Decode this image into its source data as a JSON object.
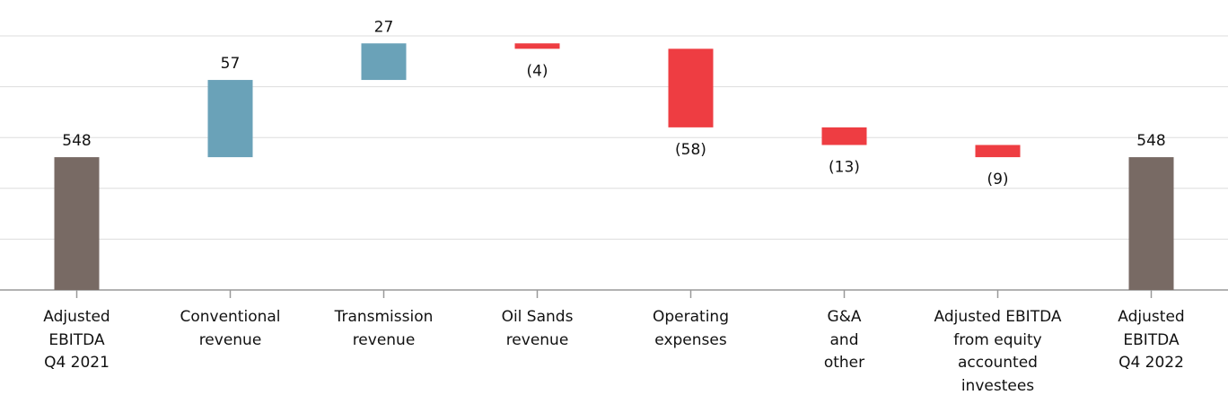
{
  "chart_data": {
    "type": "waterfall",
    "categories": [
      "Adjusted\nEBITDA\nQ4 2021",
      "Conventional\nrevenue",
      "Transmission\nrevenue",
      "Oil Sands\nrevenue",
      "Operating\nexpenses",
      "G&A\nand\nother",
      "Adjusted EBITDA\nfrom equity\naccounted\ninvestees",
      "Adjusted\nEBITDA\nQ4 2022"
    ],
    "values": [
      548,
      57,
      27,
      -4,
      -58,
      -13,
      -9,
      548
    ],
    "value_labels": [
      "548",
      "57",
      "27",
      "(4)",
      "(58)",
      "(13)",
      "(9)",
      "548"
    ],
    "measures": [
      "total",
      "relative",
      "relative",
      "relative",
      "relative",
      "relative",
      "relative",
      "total"
    ],
    "total_color": "#786a64",
    "increase_color": "#6aa2b8",
    "decrease_color": "#ee3d42",
    "ylim": [
      450,
      637.5
    ],
    "yticks": [
      450,
      487.5,
      525,
      562.5,
      600,
      637.5
    ],
    "grid": true
  }
}
